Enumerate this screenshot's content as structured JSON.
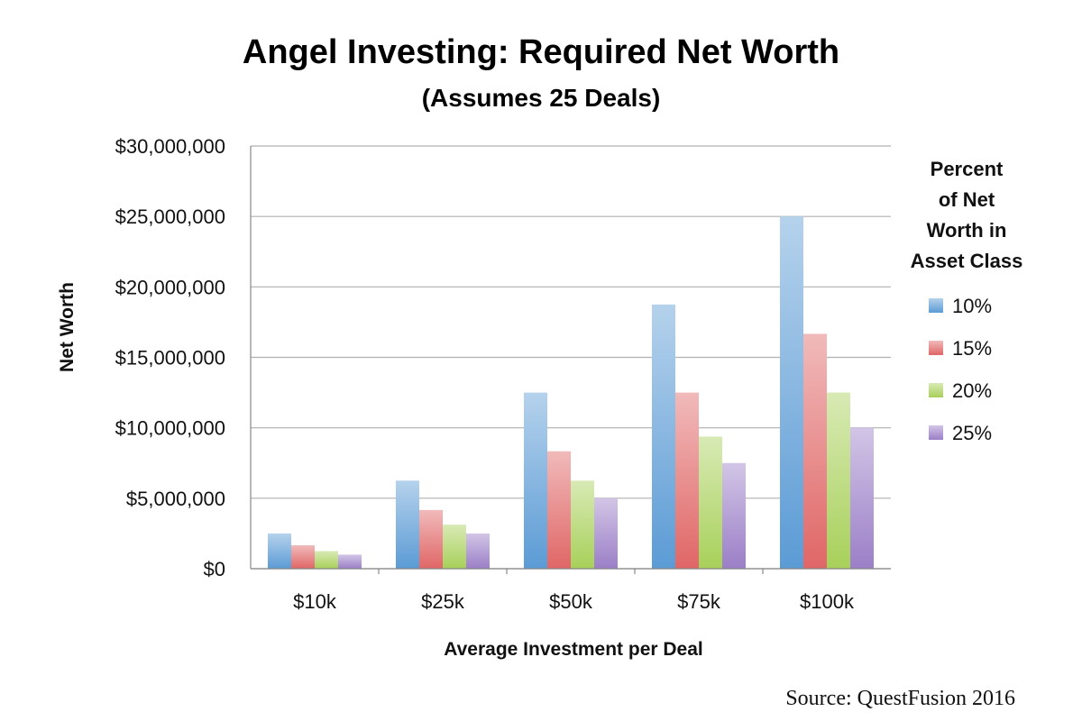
{
  "chart_data": {
    "type": "bar",
    "title": "Angel Investing: Required Net Worth",
    "subtitle": "(Assumes 25 Deals)",
    "xlabel": "Average Investment per Deal",
    "ylabel": "Net Worth",
    "categories": [
      "$10k",
      "$25k",
      "$50k",
      "$75k",
      "$100k"
    ],
    "ylim": [
      0,
      30000000
    ],
    "yticks": [
      0,
      5000000,
      10000000,
      15000000,
      20000000,
      25000000,
      30000000
    ],
    "ytick_labels": [
      "$0",
      "$5,000,000",
      "$10,000,000",
      "$15,000,000",
      "$20,000,000",
      "$25,000,000",
      "$30,000,000"
    ],
    "grid": true,
    "legend_title_lines": [
      "Percent",
      "of Net",
      "Worth in",
      "Asset Class"
    ],
    "legend_position": "right",
    "series": [
      {
        "name": "10%",
        "color": "#5b9bd5",
        "values": [
          2500000,
          6250000,
          12500000,
          18750000,
          25000000
        ]
      },
      {
        "name": "15%",
        "color": "#e06666",
        "values": [
          1666667,
          4166667,
          8333333,
          12500000,
          16666667
        ]
      },
      {
        "name": "20%",
        "color": "#a8d05a",
        "values": [
          1250000,
          3125000,
          6250000,
          9375000,
          12500000
        ]
      },
      {
        "name": "25%",
        "color": "#9b7fc7",
        "values": [
          1000000,
          2500000,
          5000000,
          7500000,
          10000000
        ]
      }
    ],
    "source": "Source: QuestFusion 2016"
  }
}
